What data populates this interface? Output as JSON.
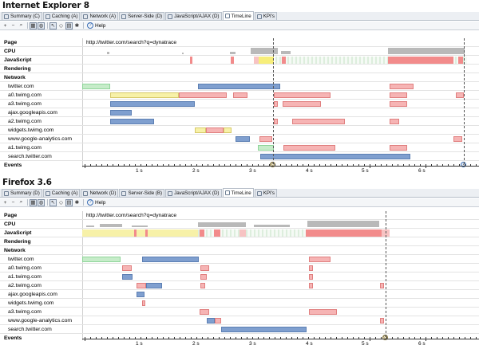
{
  "tabs": [
    {
      "label": "Summary (C)",
      "active": false
    },
    {
      "label": "Caching (A)",
      "active": false
    },
    {
      "label": "Network (A)",
      "active": false
    },
    {
      "label": "Server-Side (D)",
      "active": false
    },
    {
      "label": "JavaScript/AJAX (D)",
      "active": false
    },
    {
      "label": "TimeLine",
      "active": true
    },
    {
      "label": "KPI's",
      "active": false
    }
  ],
  "tabs_ff": [
    {
      "label": "Summary (D)",
      "active": false
    },
    {
      "label": "Caching (A)",
      "active": false
    },
    {
      "label": "Network (D)",
      "active": false
    },
    {
      "label": "Server-Side (B)",
      "active": false
    },
    {
      "label": "JavaScript/AJAX (D)",
      "active": false
    },
    {
      "label": "TimeLine",
      "active": true
    },
    {
      "label": "KPI's",
      "active": false
    }
  ],
  "toolbar": {
    "help_label": "Help"
  },
  "panels": [
    {
      "browser": "Internet Explorer 8",
      "page_url": "http://twitter.com/search?q=dynatrace",
      "row_labels": {
        "page": "Page",
        "cpu": "CPU",
        "javascript": "JavaScript",
        "rendering": "Rendering",
        "network": "Network",
        "events": "Events"
      },
      "resources": [
        "twitter.com",
        "a0.twimg.com",
        "a3.twimg.com",
        "ajax.googleapis.com",
        "a2.twimg.com",
        "widgets.twimg.com",
        "www.google-analytics.com",
        "a1.twimg.com",
        "search.twitter.com"
      ],
      "ticks": [
        "1 s",
        "2 s",
        "3 s",
        "4 s",
        "5 s",
        "6 s"
      ]
    },
    {
      "browser": "Firefox 3.6",
      "page_url": "http://twitter.com/search?q=dynatrace",
      "row_labels": {
        "page": "Page",
        "cpu": "CPU",
        "javascript": "JavaScript",
        "rendering": "Rendering",
        "network": "Network",
        "events": "Events"
      },
      "resources": [
        "twitter.com",
        "a0.twimg.com",
        "a1.twimg.com",
        "a2.twimg.com",
        "ajax.googleapis.com",
        "widgets.twimg.com",
        "a3.twimg.com",
        "www.google-analytics.com",
        "search.twitter.com"
      ],
      "ticks": [
        "1 s",
        "2 s",
        "3 s",
        "4 s",
        "5 s",
        "6 s"
      ]
    }
  ],
  "colors": {
    "network_blue": "#7f9fcf",
    "network_pink": "#f6b4b4",
    "network_green": "#c6ecc9",
    "javascript_red": "#f28b8b",
    "javascript_yellow": "#f7f1a8",
    "cpu_gray": "#b9b9b9"
  }
}
